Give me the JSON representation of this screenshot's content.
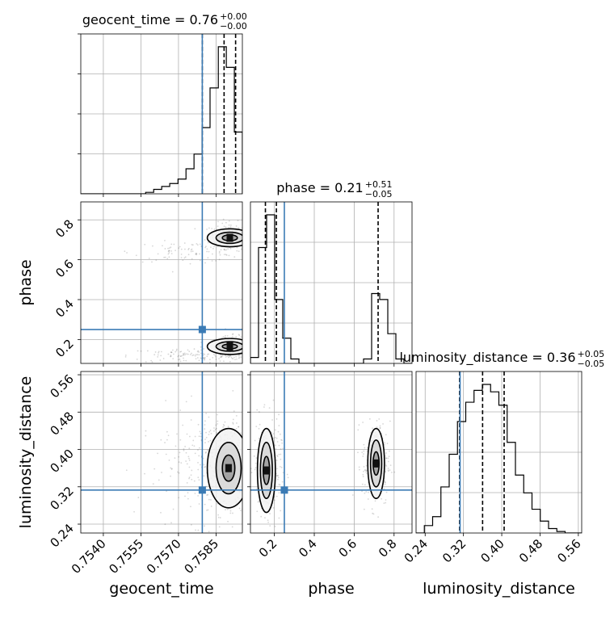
{
  "chart_data": {
    "type": "corner",
    "colors": {
      "truth": "#3b7bb5",
      "hist": "#000000",
      "grid": "#b0b0b0",
      "points": "#222222"
    },
    "parameters": [
      "geocent_time",
      "phase",
      "luminosity_distance"
    ],
    "truth": {
      "geocent_time": 0.75795,
      "phase": 0.25,
      "luminosity_distance": 0.313
    },
    "axis_ranges": {
      "geocent_time": [
        0.7531,
        0.75955
      ],
      "phase": [
        0.08,
        0.89
      ],
      "luminosity_distance": [
        0.221,
        0.567
      ]
    },
    "ticks": {
      "geocent_time": [
        "0.7540",
        "0.7555",
        "0.7570",
        "0.7585"
      ],
      "phase": [
        "0.2",
        "0.4",
        "0.6",
        "0.8"
      ],
      "luminosity_distance": [
        "0.24",
        "0.32",
        "0.40",
        "0.48",
        "0.56"
      ]
    },
    "titles": {
      "geocent_time": {
        "label": "geocent_time = 0.76",
        "plus": "+0.00",
        "minus": "−0.00"
      },
      "phase": {
        "label": "phase = 0.21",
        "plus": "+0.51",
        "minus": "−0.05"
      },
      "luminosity_distance": {
        "label": "luminosity_distance = 0.36",
        "plus": "+0.05",
        "minus": "−0.05"
      }
    },
    "xlabels": [
      "geocent_time",
      "phase",
      "luminosity_distance"
    ],
    "ylabels": [
      "phase",
      "luminosity_distance"
    ],
    "quantiles": {
      "geocent_time": [
        0.75795,
        0.75882,
        0.75928
      ],
      "phase": [
        0.155,
        0.21,
        0.72
      ],
      "luminosity_distance": [
        0.312,
        0.36,
        0.405
      ]
    },
    "histograms": {
      "geocent_time": {
        "edges": [
          0.7531,
          0.75342,
          0.75375,
          0.75407,
          0.7544,
          0.75472,
          0.75504,
          0.75536,
          0.75569,
          0.75601,
          0.75633,
          0.75665,
          0.75698,
          0.7573,
          0.75762,
          0.75794,
          0.75826,
          0.75859,
          0.75891,
          0.75923,
          0.75955
        ],
        "counts": [
          0,
          0,
          0,
          0,
          0,
          0,
          0,
          0,
          1,
          3,
          5,
          7,
          10,
          17,
          27,
          45,
          72,
          100,
          86,
          42
        ]
      },
      "phase": {
        "edges": [
          0.08,
          0.1205,
          0.161,
          0.2015,
          0.242,
          0.2825,
          0.323,
          0.3635,
          0.404,
          0.4445,
          0.485,
          0.5255,
          0.566,
          0.6065,
          0.647,
          0.6875,
          0.728,
          0.7685,
          0.809,
          0.8495,
          0.89
        ],
        "counts": [
          4,
          78,
          100,
          43,
          17,
          3,
          0,
          0,
          0,
          0,
          0,
          0,
          0,
          0,
          3,
          47,
          43,
          20,
          3,
          0
        ]
      },
      "luminosity_distance": {
        "edges": [
          0.221,
          0.2383,
          0.2556,
          0.2729,
          0.2902,
          0.3075,
          0.3248,
          0.3421,
          0.3594,
          0.3767,
          0.394,
          0.4113,
          0.4286,
          0.4459,
          0.4632,
          0.4805,
          0.4978,
          0.5151,
          0.5324,
          0.5497,
          0.567
        ],
        "counts": [
          0,
          5,
          11,
          31,
          53,
          75,
          88,
          96,
          100,
          95,
          86,
          61,
          39,
          27,
          16,
          8,
          3,
          1,
          0,
          0
        ]
      }
    },
    "clusters": {
      "phase_vs_geocent_time": [
        {
          "x": 0.75905,
          "y": 0.715,
          "sx": 0.0004,
          "sy": 0.035,
          "n": 220
        },
        {
          "x": 0.75905,
          "y": 0.155,
          "sx": 0.0004,
          "sy": 0.03,
          "n": 260
        },
        {
          "x": 0.7574,
          "y": 0.64,
          "sx": 0.0011,
          "sy": 0.025,
          "n": 90
        },
        {
          "x": 0.7574,
          "y": 0.12,
          "sx": 0.0012,
          "sy": 0.02,
          "n": 100
        }
      ],
      "luminosity_distance_vs_geocent_time": [
        {
          "x": 0.7589,
          "y": 0.365,
          "sx": 0.0005,
          "sy": 0.05,
          "n": 420
        },
        {
          "x": 0.7578,
          "y": 0.37,
          "sx": 0.0012,
          "sy": 0.06,
          "n": 140
        }
      ],
      "luminosity_distance_vs_phase": [
        {
          "x": 0.165,
          "y": 0.36,
          "sx": 0.035,
          "sy": 0.05,
          "n": 300
        },
        {
          "x": 0.71,
          "y": 0.37,
          "sx": 0.035,
          "sy": 0.045,
          "n": 240
        }
      ]
    },
    "contours": {
      "phase_vs_geocent_time": [
        {
          "x": 0.75905,
          "y": 0.71,
          "rx": [
            0.0003,
            0.00055,
            0.0009
          ],
          "ry": [
            0.015,
            0.028,
            0.045
          ]
        },
        {
          "x": 0.75905,
          "y": 0.165,
          "rx": [
            0.0003,
            0.00055,
            0.0009
          ],
          "ry": [
            0.012,
            0.024,
            0.04
          ]
        }
      ],
      "luminosity_distance_vs_geocent_time": [
        {
          "x": 0.759,
          "y": 0.36,
          "rx": [
            0.00025,
            0.0005,
            0.00085
          ],
          "ry": [
            0.028,
            0.055,
            0.085
          ]
        }
      ],
      "luminosity_distance_vs_phase": [
        {
          "x": 0.16,
          "y": 0.355,
          "rx": [
            0.016,
            0.03,
            0.045
          ],
          "ry": [
            0.03,
            0.06,
            0.09
          ]
        },
        {
          "x": 0.71,
          "y": 0.37,
          "rx": [
            0.015,
            0.028,
            0.042
          ],
          "ry": [
            0.025,
            0.05,
            0.075
          ]
        }
      ]
    }
  }
}
